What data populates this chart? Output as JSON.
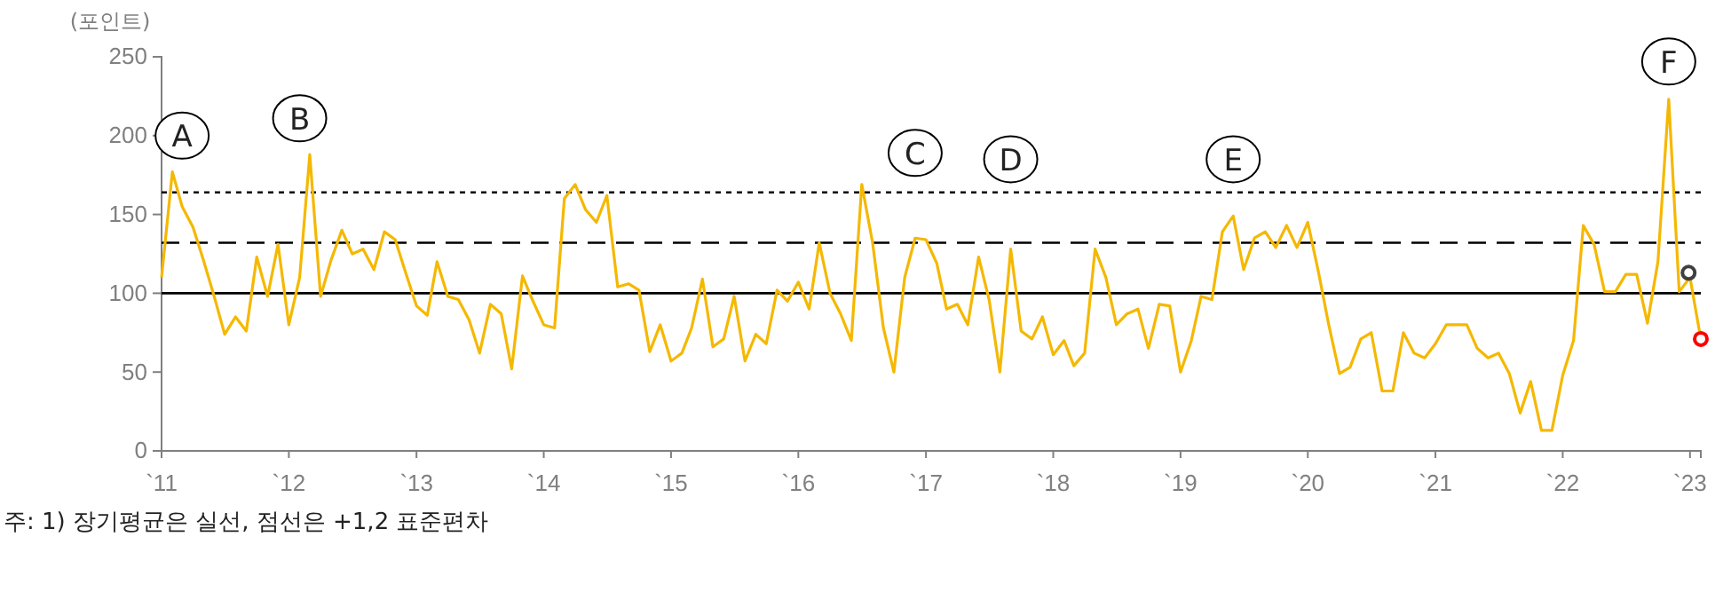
{
  "chart_data": {
    "type": "line",
    "ylabel": "(포인트)",
    "x": [
      "2011-01",
      "2011-02",
      "2011-03",
      "2011-04",
      "2011-05",
      "2011-06",
      "2011-07",
      "2011-08",
      "2011-09",
      "2011-10",
      "2011-11",
      "2011-12",
      "2012-01",
      "2012-02",
      "2012-03",
      "2012-04",
      "2012-05",
      "2012-06",
      "2012-07",
      "2012-08",
      "2012-09",
      "2012-10",
      "2012-11",
      "2012-12",
      "2013-01",
      "2013-02",
      "2013-03",
      "2013-04",
      "2013-05",
      "2013-06",
      "2013-07",
      "2013-08",
      "2013-09",
      "2013-10",
      "2013-11",
      "2013-12",
      "2014-01",
      "2014-02",
      "2014-03",
      "2014-04",
      "2014-05",
      "2014-06",
      "2014-07",
      "2014-08",
      "2014-09",
      "2014-10",
      "2014-11",
      "2014-12",
      "2015-01",
      "2015-02",
      "2015-03",
      "2015-04",
      "2015-05",
      "2015-06",
      "2015-07",
      "2015-08",
      "2015-09",
      "2015-10",
      "2015-11",
      "2015-12",
      "2016-01",
      "2016-02",
      "2016-03",
      "2016-04",
      "2016-05",
      "2016-06",
      "2016-07",
      "2016-08",
      "2016-09",
      "2016-10",
      "2016-11",
      "2016-12",
      "2017-01",
      "2017-02",
      "2017-03",
      "2017-04",
      "2017-05",
      "2017-06",
      "2017-07",
      "2017-08",
      "2017-09",
      "2017-10",
      "2017-11",
      "2017-12",
      "2018-01",
      "2018-02",
      "2018-03",
      "2018-04",
      "2018-05",
      "2018-06",
      "2018-07",
      "2018-08",
      "2018-09",
      "2018-10",
      "2018-11",
      "2018-12",
      "2019-01",
      "2019-02",
      "2019-03",
      "2019-04",
      "2019-05",
      "2019-06",
      "2019-07",
      "2019-08",
      "2019-09",
      "2019-10",
      "2019-11",
      "2019-12",
      "2020-01",
      "2020-02",
      "2020-03",
      "2020-04",
      "2020-05",
      "2020-06",
      "2020-07",
      "2020-08",
      "2020-09",
      "2020-10",
      "2020-11",
      "2020-12",
      "2021-01",
      "2021-02",
      "2021-03",
      "2021-04",
      "2021-05",
      "2021-06",
      "2021-07",
      "2021-08",
      "2021-09",
      "2021-10",
      "2021-11",
      "2021-12",
      "2022-01",
      "2022-02",
      "2022-03",
      "2022-04",
      "2022-05",
      "2022-06",
      "2022-07",
      "2022-08",
      "2022-09",
      "2022-10",
      "2022-11",
      "2022-12",
      "2023-01",
      "2023-02"
    ],
    "series": [
      {
        "color": "#f5b800",
        "values": [
          110,
          177,
          155,
          142,
          121,
          98,
          74,
          85,
          76,
          123,
          98,
          131,
          80,
          110,
          188,
          98,
          121,
          140,
          125,
          128,
          115,
          139,
          134,
          113,
          92,
          86,
          120,
          98,
          96,
          83,
          62,
          93,
          87,
          52,
          111,
          95,
          80,
          78,
          160,
          169,
          153,
          145,
          162,
          104,
          106,
          102,
          63,
          80,
          57,
          62,
          78,
          109,
          66,
          71,
          98,
          57,
          74,
          68,
          102,
          95,
          107,
          90,
          132,
          100,
          87,
          70,
          169,
          132,
          78,
          50,
          110,
          135,
          134,
          119,
          90,
          93,
          80,
          123,
          96,
          50,
          128,
          76,
          71,
          85,
          61,
          70,
          54,
          62,
          128,
          110,
          80,
          87,
          90,
          65,
          93,
          92,
          50,
          70,
          98,
          96,
          139,
          149,
          115,
          135,
          139,
          129,
          143,
          129,
          145,
          113,
          80,
          49,
          53,
          71,
          75,
          38,
          38,
          75,
          62,
          59,
          68,
          80,
          80,
          80,
          65,
          59,
          62,
          49,
          24,
          44,
          13,
          13,
          48,
          70,
          143,
          131,
          101,
          101,
          112,
          112,
          81,
          120,
          223,
          101,
          110,
          71
        ]
      },
      {
        "type": "scatter",
        "x": [
          "2022-12-28"
        ],
        "color": "#404040",
        "values": [
          113
        ]
      },
      {
        "type": "scatter",
        "x": [
          "2023-02"
        ],
        "color": "#ff0000",
        "values": [
          71
        ]
      }
    ],
    "xlim": [
      "2011-01",
      "2023-02"
    ],
    "xticks": [
      {
        "value": "2011",
        "label": "`11"
      },
      {
        "value": "2012",
        "label": "`12"
      },
      {
        "value": "2013",
        "label": "`13"
      },
      {
        "value": "2014",
        "label": "`14"
      },
      {
        "value": "2015",
        "label": "`15"
      },
      {
        "value": "2016",
        "label": "`16"
      },
      {
        "value": "2017",
        "label": "`17"
      },
      {
        "value": "2018",
        "label": "`18"
      },
      {
        "value": "2019",
        "label": "`19"
      },
      {
        "value": "2020",
        "label": "`20"
      },
      {
        "value": "2021",
        "label": "`21"
      },
      {
        "value": "2022",
        "label": "`22"
      },
      {
        "value": "2023",
        "label": "`23"
      }
    ],
    "ylim": [
      0,
      250
    ],
    "yticks": [
      0,
      50,
      100,
      150,
      200,
      250
    ],
    "ref_lines": [
      {
        "axis": "y",
        "value": 100,
        "line_style": "solid",
        "color": "#000000"
      },
      {
        "axis": "y",
        "value": 132,
        "line_style": "dashed",
        "color": "#000000"
      },
      {
        "axis": "y",
        "value": 164,
        "line_style": "dotted",
        "color": "#000000"
      }
    ],
    "annotations": [
      {
        "text": "A",
        "x": "2011-03",
        "y": 200
      },
      {
        "text": "B",
        "x": "2012-02",
        "y": 211
      },
      {
        "text": "C",
        "x": "2016-12",
        "y": 189
      },
      {
        "text": "D",
        "x": "2017-09",
        "y": 185
      },
      {
        "text": "E",
        "x": "2019-06",
        "y": 185
      },
      {
        "text": "F",
        "x": "2022-11",
        "y": 247
      },
      "주: 1) 장기평균은 실선, 점선은 +1,2 표준편차"
    ],
    "grid": false
  }
}
